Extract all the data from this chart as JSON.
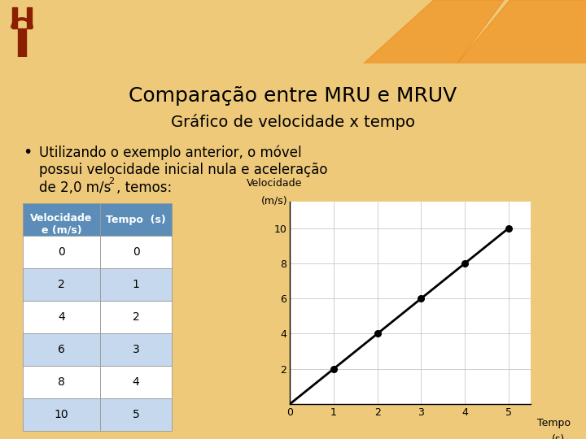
{
  "title": "Comparação entre MRU e MRUV",
  "subtitle": "Gráfico de velocidade x tempo",
  "bullet_line1": "Utilizando o exemplo anterior, o móvel",
  "bullet_line2": "possui velocidade inicial nula e aceleração",
  "bullet_line3_pre": "de 2,0 m/s",
  "bullet_superscript": "2",
  "bullet_line3_post": ", temos:",
  "slide_bg": "#EEC97A",
  "top_bar_color": "#F07800",
  "top_bar_lighter": "#F5A030",
  "triangle_color": "#F09020",
  "table_header_bg": "#5B8DB8",
  "table_header_fg": "#FFFFFF",
  "table_row_colors": [
    "#FFFFFF",
    "#C5D8EE",
    "#FFFFFF",
    "#C5D8EE",
    "#FFFFFF",
    "#C5D8EE"
  ],
  "table_col1_header": "Velocidade\ne (m/s)",
  "table_col2_header": "Tempo  (s)",
  "table_col1_data": [
    "0",
    "2",
    "4",
    "6",
    "8",
    "10"
  ],
  "table_col2_data": [
    "0",
    "1",
    "2",
    "3",
    "4",
    "5"
  ],
  "graph_x": [
    0,
    1,
    2,
    3,
    4,
    5
  ],
  "graph_y": [
    0,
    2,
    4,
    6,
    8,
    10
  ],
  "graph_dots_x": [
    1,
    2,
    3,
    4,
    5
  ],
  "graph_dots_y": [
    2,
    4,
    6,
    8,
    10
  ],
  "graph_ytick_labels": [
    "",
    "2",
    "4",
    "6",
    "8",
    "10"
  ],
  "graph_xtick_labels": [
    "0",
    "1",
    "2",
    "3",
    "4",
    "5"
  ],
  "graph_ylabel_l1": "Velocidade",
  "graph_ylabel_l2": "(m/s)",
  "graph_xlabel_l1": "Tempo",
  "graph_xlabel_l2": "(s)",
  "title_fontsize": 18,
  "subtitle_fontsize": 14,
  "bullet_fontsize": 12,
  "table_header_fontsize": 9,
  "table_data_fontsize": 10
}
